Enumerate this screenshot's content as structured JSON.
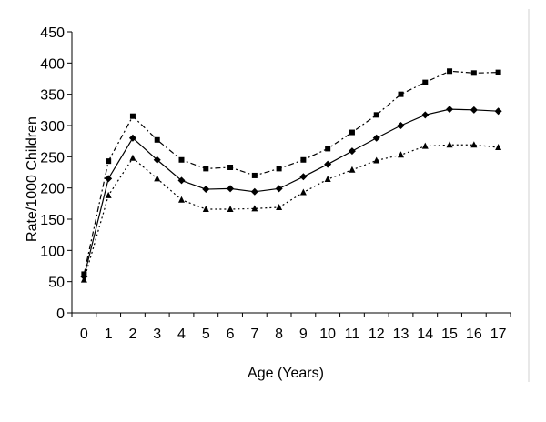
{
  "chart_data": {
    "type": "line",
    "title": "",
    "xlabel": "Age (Years)",
    "ylabel": "Rate/1000 Children",
    "x": [
      0,
      1,
      2,
      3,
      4,
      5,
      6,
      7,
      8,
      9,
      10,
      11,
      12,
      13,
      14,
      15,
      16,
      17
    ],
    "xlim": [
      -0.5,
      17.5
    ],
    "ylim": [
      0,
      450
    ],
    "y_ticks": [
      0,
      50,
      100,
      150,
      200,
      250,
      300,
      350,
      400,
      450
    ],
    "grid": false,
    "legend": "none",
    "series": [
      {
        "style": "dash-dot",
        "marker": "square",
        "color": "#000000",
        "values": [
          62,
          243,
          315,
          277,
          245,
          231,
          233,
          220,
          231,
          245,
          263,
          289,
          317,
          350,
          369,
          387,
          384,
          385
        ]
      },
      {
        "style": "solid",
        "marker": "diamond",
        "color": "#000000",
        "values": [
          58,
          215,
          280,
          245,
          212,
          198,
          199,
          194,
          199,
          218,
          238,
          259,
          280,
          300,
          317,
          326,
          325,
          323
        ]
      },
      {
        "style": "dotted",
        "marker": "triangle",
        "color": "#000000",
        "values": [
          53,
          188,
          248,
          215,
          181,
          166,
          166,
          167,
          169,
          193,
          214,
          229,
          244,
          253,
          267,
          269,
          269,
          265
        ]
      }
    ]
  }
}
